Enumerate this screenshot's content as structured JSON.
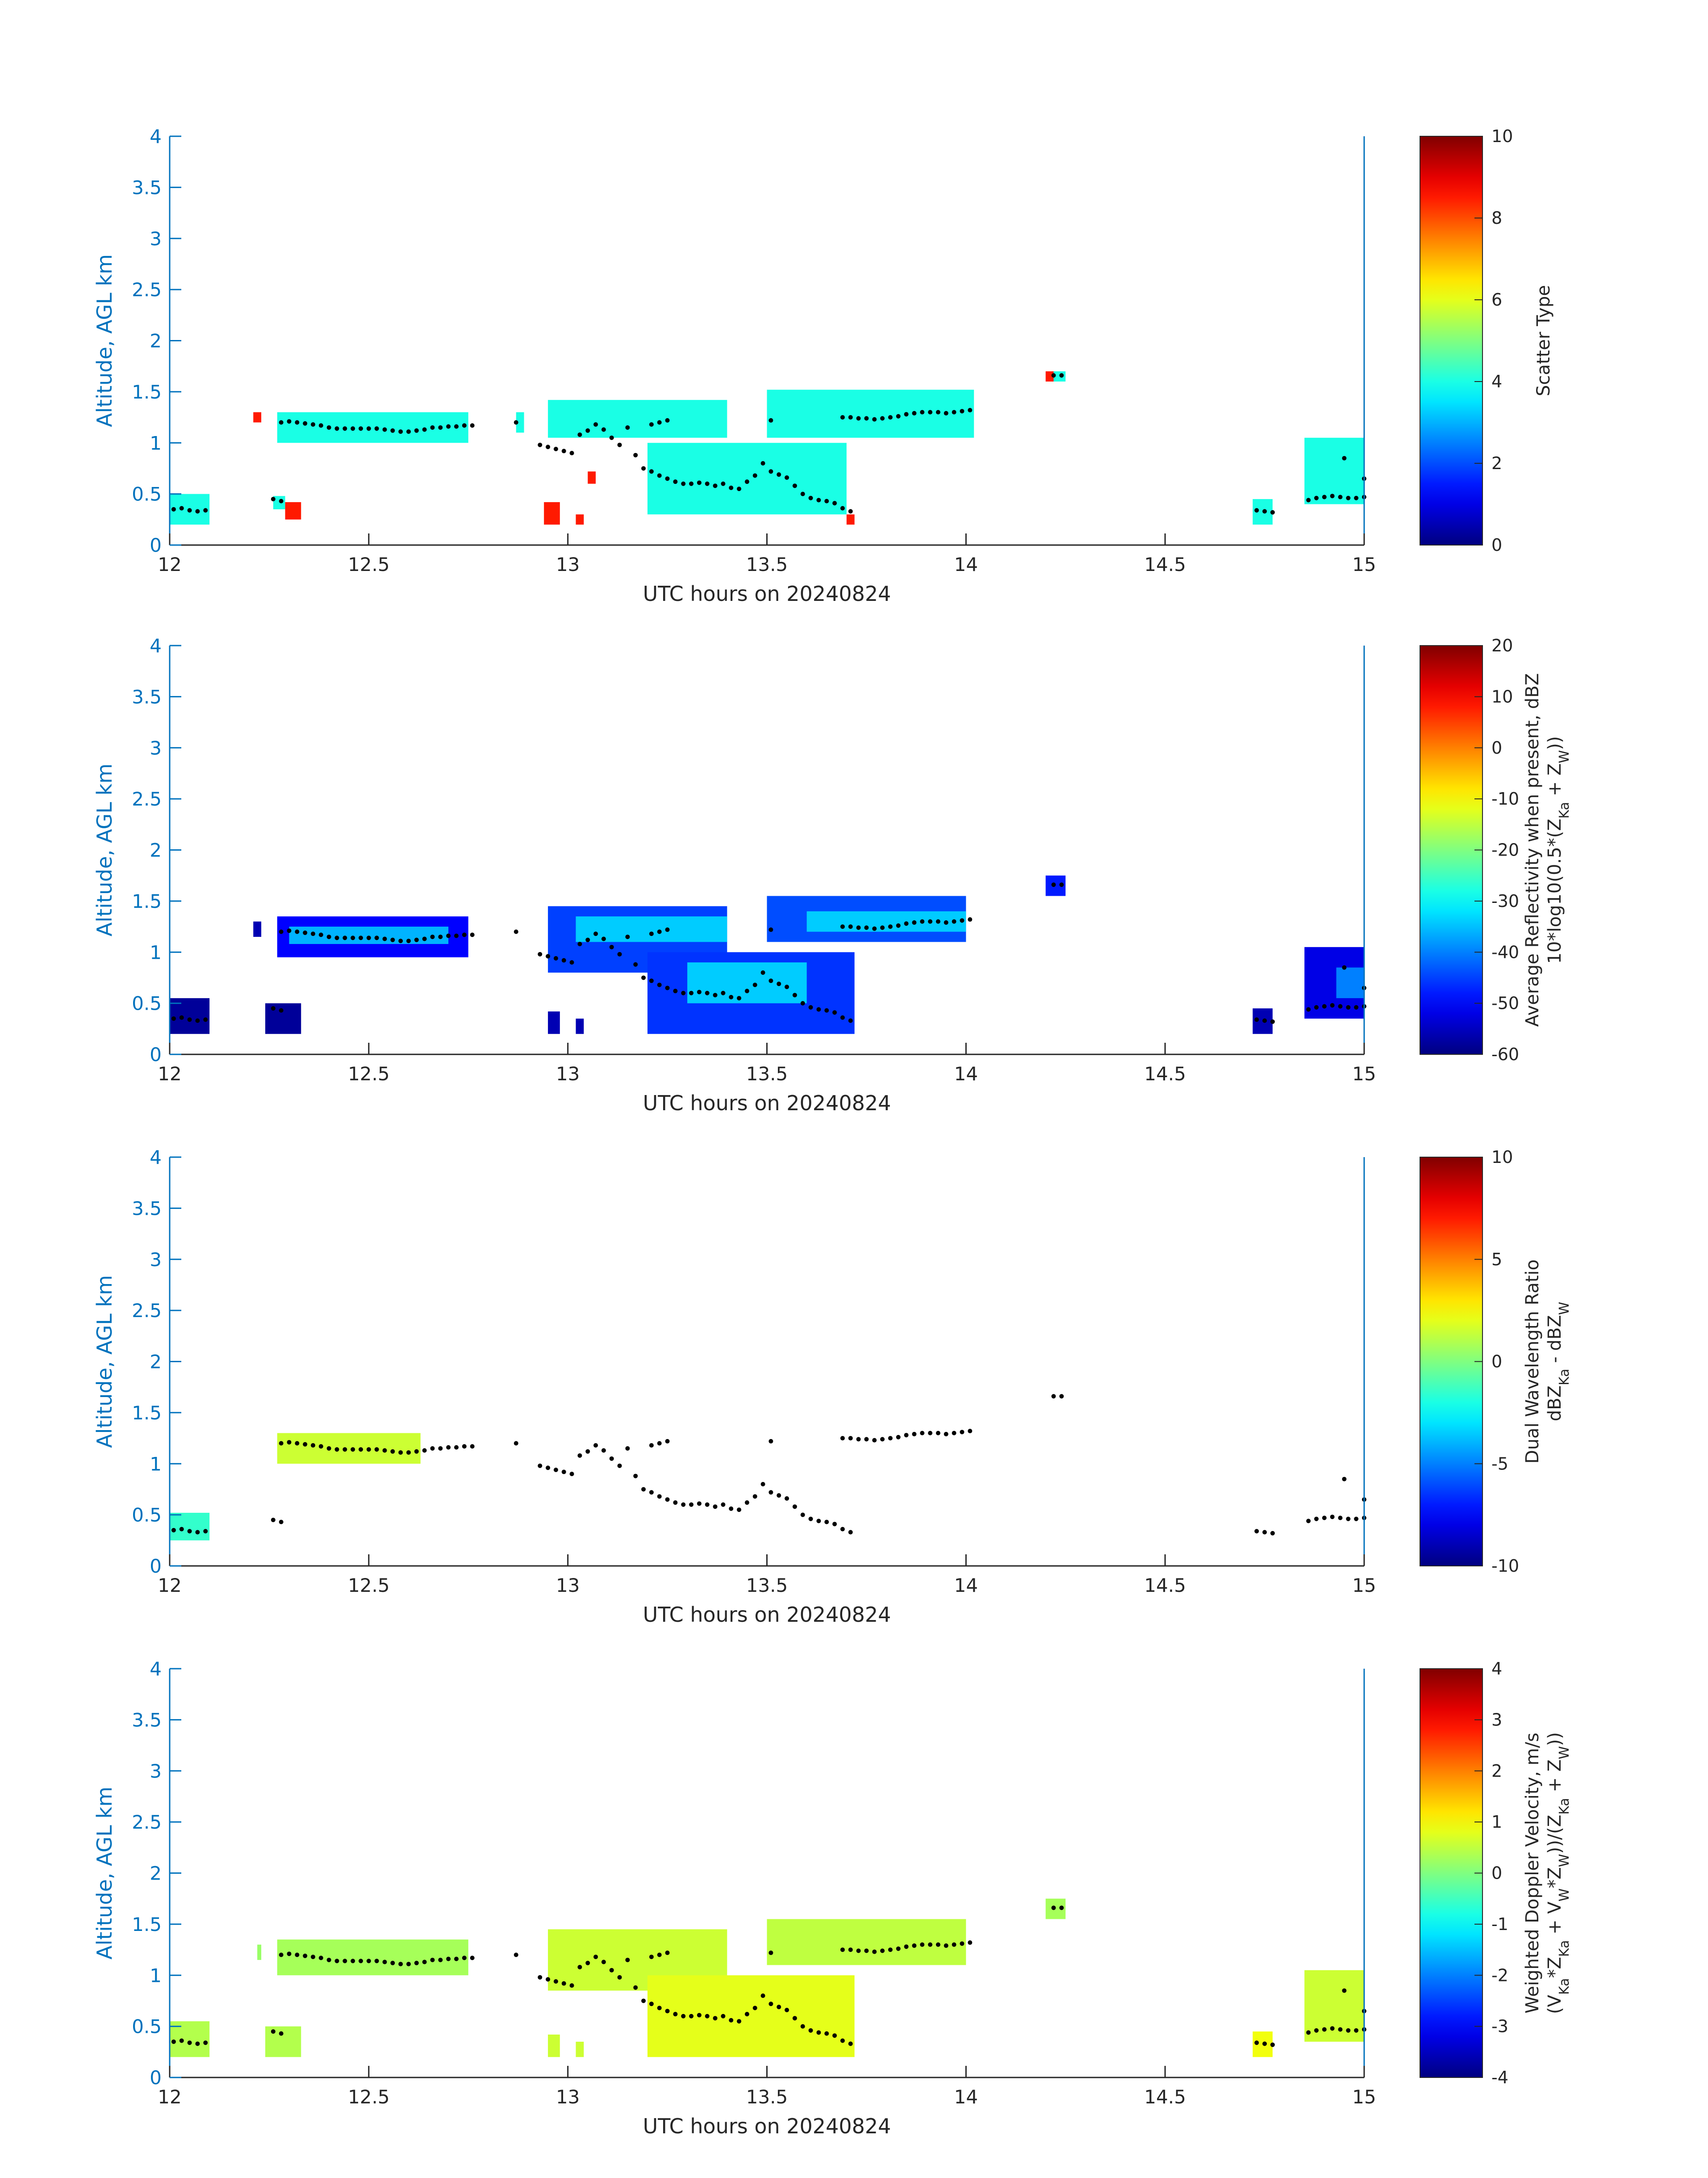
{
  "colors": {
    "axis": "#0072BD",
    "text": "#262626",
    "mark": "#000000"
  },
  "chart_data": [
    {
      "type": "heatmap",
      "xlabel": "UTC hours on 20240824",
      "ylabel": "Altitude, AGL km",
      "xlim": [
        12,
        15
      ],
      "ylim": [
        0,
        4
      ],
      "x_ticks": [
        "12",
        "12.5",
        "13",
        "13.5",
        "14",
        "14.5",
        "15"
      ],
      "y_ticks": [
        "0",
        "0.5",
        "1",
        "1.5",
        "2",
        "2.5",
        "3",
        "3.5",
        "4"
      ],
      "colorbar": {
        "label": [
          "Scatter Type"
        ],
        "range": [
          0,
          10
        ],
        "ticks": [
          "0",
          "2",
          "4",
          "6",
          "8",
          "10"
        ],
        "colormap": "jet"
      },
      "regions": [
        {
          "x": [
            12.0,
            12.1
          ],
          "y": [
            0.2,
            0.5
          ],
          "value": 4
        },
        {
          "x": [
            12.21,
            12.23
          ],
          "y": [
            1.2,
            1.3
          ],
          "value": 8.5
        },
        {
          "x": [
            12.26,
            12.29
          ],
          "y": [
            0.35,
            0.48
          ],
          "value": 4
        },
        {
          "x": [
            12.29,
            12.33
          ],
          "y": [
            0.25,
            0.42
          ],
          "value": 8.5
        },
        {
          "x": [
            12.27,
            12.75
          ],
          "y": [
            1.0,
            1.3
          ],
          "value": 4
        },
        {
          "x": [
            12.87,
            12.89
          ],
          "y": [
            1.1,
            1.3
          ],
          "value": 4
        },
        {
          "x": [
            12.95,
            13.4
          ],
          "y": [
            1.05,
            1.42
          ],
          "value": 4
        },
        {
          "x": [
            13.2,
            13.7
          ],
          "y": [
            0.3,
            1.0
          ],
          "value": 4
        },
        {
          "x": [
            13.5,
            14.02
          ],
          "y": [
            1.05,
            1.52
          ],
          "value": 4
        },
        {
          "x": [
            12.94,
            12.98
          ],
          "y": [
            0.2,
            0.42
          ],
          "value": 8.5
        },
        {
          "x": [
            13.02,
            13.04
          ],
          "y": [
            0.2,
            0.3
          ],
          "value": 8.5
        },
        {
          "x": [
            13.05,
            13.07
          ],
          "y": [
            0.6,
            0.72
          ],
          "value": 8.5
        },
        {
          "x": [
            13.7,
            13.72
          ],
          "y": [
            0.2,
            0.3
          ],
          "value": 8.5
        },
        {
          "x": [
            14.2,
            14.22
          ],
          "y": [
            1.6,
            1.7
          ],
          "value": 8.5
        },
        {
          "x": [
            14.22,
            14.25
          ],
          "y": [
            1.6,
            1.7
          ],
          "value": 4
        },
        {
          "x": [
            14.72,
            14.77
          ],
          "y": [
            0.2,
            0.45
          ],
          "value": 4
        },
        {
          "x": [
            14.85,
            15.0
          ],
          "y": [
            0.4,
            1.05
          ],
          "value": 4
        }
      ]
    },
    {
      "type": "heatmap",
      "xlabel": "UTC hours on 20240824",
      "ylabel": "Altitude, AGL km",
      "xlim": [
        12,
        15
      ],
      "ylim": [
        0,
        4
      ],
      "x_ticks": [
        "12",
        "12.5",
        "13",
        "13.5",
        "14",
        "14.5",
        "15"
      ],
      "y_ticks": [
        "0",
        "0.5",
        "1",
        "1.5",
        "2",
        "2.5",
        "3",
        "3.5",
        "4"
      ],
      "colorbar": {
        "label": [
          "Average Reflectivity when present, dBZ",
          "10*log10(0.5*(Z",
          "Ka",
          " + Z",
          "W",
          "))"
        ],
        "range": [
          -60,
          20
        ],
        "ticks": [
          "-60",
          "-50",
          "-40",
          "-30",
          "-20",
          "-10",
          "0",
          "10",
          "20"
        ],
        "colormap": "jet"
      },
      "regions": [
        {
          "x": [
            12.0,
            12.1
          ],
          "y": [
            0.2,
            0.55
          ],
          "value": -58
        },
        {
          "x": [
            12.21,
            12.23
          ],
          "y": [
            1.15,
            1.3
          ],
          "value": -56
        },
        {
          "x": [
            12.24,
            12.33
          ],
          "y": [
            0.2,
            0.5
          ],
          "value": -58
        },
        {
          "x": [
            12.27,
            12.75
          ],
          "y": [
            0.95,
            1.35
          ],
          "value": -50
        },
        {
          "x": [
            12.3,
            12.7
          ],
          "y": [
            1.08,
            1.25
          ],
          "value": -36
        },
        {
          "x": [
            12.95,
            13.4
          ],
          "y": [
            0.8,
            1.45
          ],
          "value": -45
        },
        {
          "x": [
            13.02,
            13.4
          ],
          "y": [
            1.1,
            1.35
          ],
          "value": -34
        },
        {
          "x": [
            13.2,
            13.72
          ],
          "y": [
            0.2,
            1.0
          ],
          "value": -46
        },
        {
          "x": [
            13.3,
            13.6
          ],
          "y": [
            0.5,
            0.9
          ],
          "value": -34
        },
        {
          "x": [
            13.5,
            14.0
          ],
          "y": [
            1.1,
            1.55
          ],
          "value": -44
        },
        {
          "x": [
            13.6,
            14.0
          ],
          "y": [
            1.2,
            1.4
          ],
          "value": -34
        },
        {
          "x": [
            12.95,
            12.98
          ],
          "y": [
            0.2,
            0.42
          ],
          "value": -56
        },
        {
          "x": [
            13.02,
            13.04
          ],
          "y": [
            0.2,
            0.35
          ],
          "value": -56
        },
        {
          "x": [
            14.2,
            14.25
          ],
          "y": [
            1.55,
            1.75
          ],
          "value": -48
        },
        {
          "x": [
            14.72,
            14.77
          ],
          "y": [
            0.2,
            0.45
          ],
          "value": -56
        },
        {
          "x": [
            14.85,
            15.0
          ],
          "y": [
            0.35,
            1.05
          ],
          "value": -52
        },
        {
          "x": [
            14.93,
            15.0
          ],
          "y": [
            0.55,
            0.85
          ],
          "value": -40
        }
      ]
    },
    {
      "type": "heatmap",
      "xlabel": "UTC hours on 20240824",
      "ylabel": "Altitude, AGL km",
      "xlim": [
        12,
        15
      ],
      "ylim": [
        0,
        4
      ],
      "x_ticks": [
        "12",
        "12.5",
        "13",
        "13.5",
        "14",
        "14.5",
        "15"
      ],
      "y_ticks": [
        "0",
        "0.5",
        "1",
        "1.5",
        "2",
        "2.5",
        "3",
        "3.5",
        "4"
      ],
      "colorbar": {
        "label": [
          "Dual Wavelength Ratio",
          "dBZ",
          "Ka",
          " - dBZ",
          "W",
          ""
        ],
        "range": [
          -10,
          10
        ],
        "ticks": [
          "-10",
          "-5",
          "0",
          "5",
          "10"
        ],
        "colormap": "jet"
      },
      "regions": [
        {
          "x": [
            12.0,
            12.1
          ],
          "y": [
            0.25,
            0.52
          ],
          "value": -1.5
        },
        {
          "x": [
            12.27,
            12.63
          ],
          "y": [
            1.0,
            1.3
          ],
          "value": 1.5
        }
      ]
    },
    {
      "type": "heatmap",
      "xlabel": "UTC hours on 20240824",
      "ylabel": "Altitude, AGL km",
      "xlim": [
        12,
        15
      ],
      "ylim": [
        0,
        4
      ],
      "x_ticks": [
        "12",
        "12.5",
        "13",
        "13.5",
        "14",
        "14.5",
        "15"
      ],
      "y_ticks": [
        "0",
        "0.5",
        "1",
        "1.5",
        "2",
        "2.5",
        "3",
        "3.5",
        "4"
      ],
      "colorbar": {
        "label": [
          "Weighted Doppler Velocity, m/s",
          "(V",
          "Ka",
          "*Z",
          "Ka",
          " + V",
          "W",
          "*Z",
          "W",
          "))/(Z",
          "Ka",
          " + Z",
          "W",
          "))"
        ],
        "range": [
          -4,
          4
        ],
        "ticks": [
          "-4",
          "-3",
          "-2",
          "-1",
          "0",
          "1",
          "2",
          "3",
          "4"
        ],
        "colormap": "jet"
      },
      "regions": [
        {
          "x": [
            12.0,
            12.1
          ],
          "y": [
            0.2,
            0.55
          ],
          "value": 0.4
        },
        {
          "x": [
            12.22,
            12.23
          ],
          "y": [
            1.15,
            1.3
          ],
          "value": 0.2
        },
        {
          "x": [
            12.24,
            12.33
          ],
          "y": [
            0.2,
            0.5
          ],
          "value": 0.4
        },
        {
          "x": [
            12.27,
            12.75
          ],
          "y": [
            1.0,
            1.35
          ],
          "value": 0.3
        },
        {
          "x": [
            12.95,
            13.4
          ],
          "y": [
            0.85,
            1.45
          ],
          "value": 0.6
        },
        {
          "x": [
            13.2,
            13.72
          ],
          "y": [
            0.2,
            1.0
          ],
          "value": 0.8
        },
        {
          "x": [
            13.5,
            14.0
          ],
          "y": [
            1.1,
            1.55
          ],
          "value": 0.5
        },
        {
          "x": [
            12.95,
            12.98
          ],
          "y": [
            0.2,
            0.42
          ],
          "value": 0.6
        },
        {
          "x": [
            13.02,
            13.04
          ],
          "y": [
            0.2,
            0.35
          ],
          "value": 0.6
        },
        {
          "x": [
            14.2,
            14.25
          ],
          "y": [
            1.55,
            1.75
          ],
          "value": 0.3
        },
        {
          "x": [
            14.72,
            14.77
          ],
          "y": [
            0.2,
            0.45
          ],
          "value": 0.9
        },
        {
          "x": [
            14.85,
            15.0
          ],
          "y": [
            0.35,
            1.05
          ],
          "value": 0.6
        }
      ]
    }
  ],
  "cloud_base_points": [
    [
      12.01,
      0.35
    ],
    [
      12.03,
      0.36
    ],
    [
      12.05,
      0.34
    ],
    [
      12.07,
      0.33
    ],
    [
      12.09,
      0.34
    ],
    [
      12.26,
      0.45
    ],
    [
      12.28,
      0.43
    ],
    [
      12.28,
      1.2
    ],
    [
      12.3,
      1.21
    ],
    [
      12.32,
      1.2
    ],
    [
      12.34,
      1.19
    ],
    [
      12.36,
      1.18
    ],
    [
      12.38,
      1.17
    ],
    [
      12.4,
      1.15
    ],
    [
      12.42,
      1.14
    ],
    [
      12.44,
      1.14
    ],
    [
      12.46,
      1.14
    ],
    [
      12.48,
      1.14
    ],
    [
      12.5,
      1.14
    ],
    [
      12.52,
      1.14
    ],
    [
      12.54,
      1.13
    ],
    [
      12.56,
      1.12
    ],
    [
      12.58,
      1.11
    ],
    [
      12.6,
      1.11
    ],
    [
      12.62,
      1.12
    ],
    [
      12.64,
      1.13
    ],
    [
      12.66,
      1.15
    ],
    [
      12.68,
      1.15
    ],
    [
      12.7,
      1.16
    ],
    [
      12.72,
      1.16
    ],
    [
      12.74,
      1.17
    ],
    [
      12.76,
      1.17
    ],
    [
      12.87,
      1.2
    ],
    [
      12.93,
      0.98
    ],
    [
      12.95,
      0.96
    ],
    [
      12.97,
      0.94
    ],
    [
      12.99,
      0.92
    ],
    [
      13.01,
      0.9
    ],
    [
      13.03,
      1.08
    ],
    [
      13.05,
      1.12
    ],
    [
      13.07,
      1.18
    ],
    [
      13.09,
      1.13
    ],
    [
      13.11,
      1.05
    ],
    [
      13.13,
      0.98
    ],
    [
      13.15,
      1.15
    ],
    [
      13.17,
      0.88
    ],
    [
      13.19,
      0.75
    ],
    [
      13.21,
      1.18
    ],
    [
      13.23,
      1.2
    ],
    [
      13.25,
      1.22
    ],
    [
      13.21,
      0.72
    ],
    [
      13.23,
      0.68
    ],
    [
      13.25,
      0.65
    ],
    [
      13.27,
      0.62
    ],
    [
      13.29,
      0.6
    ],
    [
      13.31,
      0.6
    ],
    [
      13.33,
      0.61
    ],
    [
      13.35,
      0.6
    ],
    [
      13.37,
      0.58
    ],
    [
      13.39,
      0.6
    ],
    [
      13.41,
      0.56
    ],
    [
      13.43,
      0.55
    ],
    [
      13.45,
      0.62
    ],
    [
      13.47,
      0.68
    ],
    [
      13.49,
      0.8
    ],
    [
      13.51,
      1.22
    ],
    [
      13.51,
      0.72
    ],
    [
      13.53,
      0.69
    ],
    [
      13.55,
      0.66
    ],
    [
      13.57,
      0.58
    ],
    [
      13.59,
      0.5
    ],
    [
      13.61,
      0.46
    ],
    [
      13.63,
      0.44
    ],
    [
      13.65,
      0.43
    ],
    [
      13.67,
      0.41
    ],
    [
      13.69,
      0.36
    ],
    [
      13.71,
      0.33
    ],
    [
      13.69,
      1.25
    ],
    [
      13.71,
      1.25
    ],
    [
      13.73,
      1.24
    ],
    [
      13.75,
      1.24
    ],
    [
      13.77,
      1.23
    ],
    [
      13.79,
      1.24
    ],
    [
      13.81,
      1.25
    ],
    [
      13.83,
      1.26
    ],
    [
      13.85,
      1.28
    ],
    [
      13.87,
      1.29
    ],
    [
      13.89,
      1.3
    ],
    [
      13.91,
      1.3
    ],
    [
      13.93,
      1.3
    ],
    [
      13.95,
      1.29
    ],
    [
      13.97,
      1.3
    ],
    [
      13.99,
      1.31
    ],
    [
      14.01,
      1.32
    ],
    [
      14.22,
      1.66
    ],
    [
      14.24,
      1.66
    ],
    [
      14.73,
      0.34
    ],
    [
      14.75,
      0.33
    ],
    [
      14.77,
      0.32
    ],
    [
      14.86,
      0.44
    ],
    [
      14.88,
      0.46
    ],
    [
      14.9,
      0.47
    ],
    [
      14.92,
      0.48
    ],
    [
      14.94,
      0.47
    ],
    [
      14.96,
      0.46
    ],
    [
      14.98,
      0.46
    ],
    [
      15.0,
      0.47
    ],
    [
      14.95,
      0.85
    ],
    [
      15.0,
      0.65
    ]
  ]
}
